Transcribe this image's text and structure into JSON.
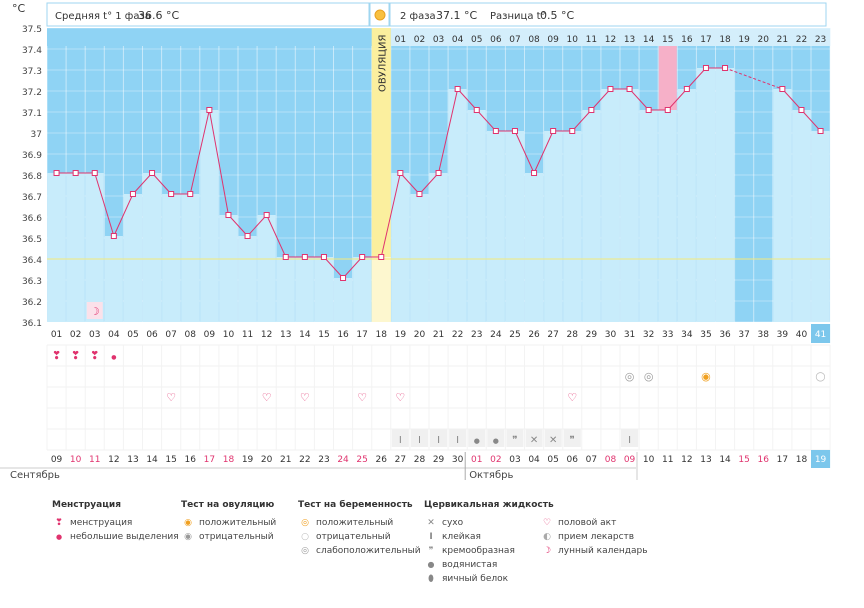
{
  "header": {
    "unit": "°C",
    "phase1_label": "Средняя t° 1 фаза",
    "phase1_value": "36.6 °C",
    "phase2_label": "2 фаза",
    "phase2_value": "37.1 °C",
    "diff_label": "Разница t°",
    "diff_value": "0.5 °C",
    "ovulation_label": "ОВУЛЯЦИЯ"
  },
  "colors": {
    "sky": "#8fd3f4",
    "bar": "#c8ecfb",
    "line": "#e0336e",
    "ovulation": "#fbef9e",
    "highlight": "#f6b0c8",
    "today": "#7cc7ec",
    "red_text": "#e0336e"
  },
  "chart_data": {
    "type": "line",
    "title": "",
    "ylabel": "°C",
    "ylim": [
      36.1,
      37.5
    ],
    "y_ticks": [
      "37.5",
      "37.4",
      "37.3",
      "37.2",
      "37.1",
      "37",
      "36.9",
      "36.8",
      "36.7",
      "36.6",
      "36.5",
      "36.4",
      "36.3",
      "36.2",
      "36.1"
    ],
    "coverline": 36.4,
    "ovulation_day": 18,
    "cycle_days": [
      "01",
      "02",
      "03",
      "04",
      "05",
      "06",
      "07",
      "08",
      "09",
      "10",
      "11",
      "12",
      "13",
      "14",
      "15",
      "16",
      "17",
      "18",
      "19",
      "20",
      "21",
      "22",
      "23",
      "24",
      "25",
      "26",
      "27",
      "28",
      "29",
      "30",
      "31",
      "32",
      "33",
      "34",
      "35",
      "36",
      "37",
      "38",
      "39",
      "40",
      "41"
    ],
    "temperatures": [
      36.8,
      36.8,
      36.8,
      36.5,
      36.7,
      36.8,
      36.7,
      36.7,
      37.1,
      36.6,
      36.5,
      36.6,
      36.4,
      36.4,
      36.4,
      36.3,
      36.4,
      36.4,
      36.8,
      36.7,
      36.8,
      37.2,
      37.1,
      37.0,
      37.0,
      36.8,
      37.0,
      37.0,
      37.1,
      37.2,
      37.2,
      37.1,
      37.1,
      37.2,
      37.3,
      37.3,
      null,
      null,
      37.2,
      37.1,
      37.0
    ],
    "phase2_numbers": [
      "01",
      "02",
      "03",
      "04",
      "05",
      "06",
      "07",
      "08",
      "09",
      "10",
      "11",
      "12",
      "13",
      "14",
      "15",
      "16",
      "17",
      "18",
      "19",
      "20",
      "21",
      "22",
      "23"
    ],
    "highlight_phase2_day": "15",
    "calendar_dates": [
      "09",
      "10",
      "11",
      "12",
      "13",
      "14",
      "15",
      "16",
      "17",
      "18",
      "19",
      "20",
      "21",
      "22",
      "23",
      "24",
      "25",
      "26",
      "27",
      "28",
      "29",
      "30",
      "01",
      "02",
      "03",
      "04",
      "05",
      "06",
      "07",
      "08",
      "09",
      "10",
      "11",
      "12",
      "13",
      "14",
      "15",
      "16",
      "17",
      "18",
      "19"
    ],
    "red_dates_idx": [
      1,
      2,
      8,
      9,
      15,
      16,
      22,
      23,
      29,
      30,
      36,
      37
    ],
    "months": [
      "Сентябрь",
      "Октябрь"
    ],
    "current_cycle_day": "41",
    "current_date": "19"
  },
  "legend": {
    "menstruation": {
      "title": "Менструация",
      "items": [
        "менструация",
        "небольшие выделения"
      ]
    },
    "ovulation_test": {
      "title": "Тест на овуляцию",
      "items": [
        "положительный",
        "отрицательный"
      ]
    },
    "pregnancy_test": {
      "title": "Тест на беременность",
      "items": [
        "положительный",
        "отрицательный",
        "слабоположительный"
      ]
    },
    "cervical": {
      "title": "Цервикальная жидкость",
      "items": [
        "сухо",
        "клейкая",
        "кремообразная",
        "водянистая",
        "яичный белок"
      ]
    },
    "other": {
      "items": [
        "половой акт",
        "прием лекарств",
        "лунный календарь"
      ]
    }
  }
}
